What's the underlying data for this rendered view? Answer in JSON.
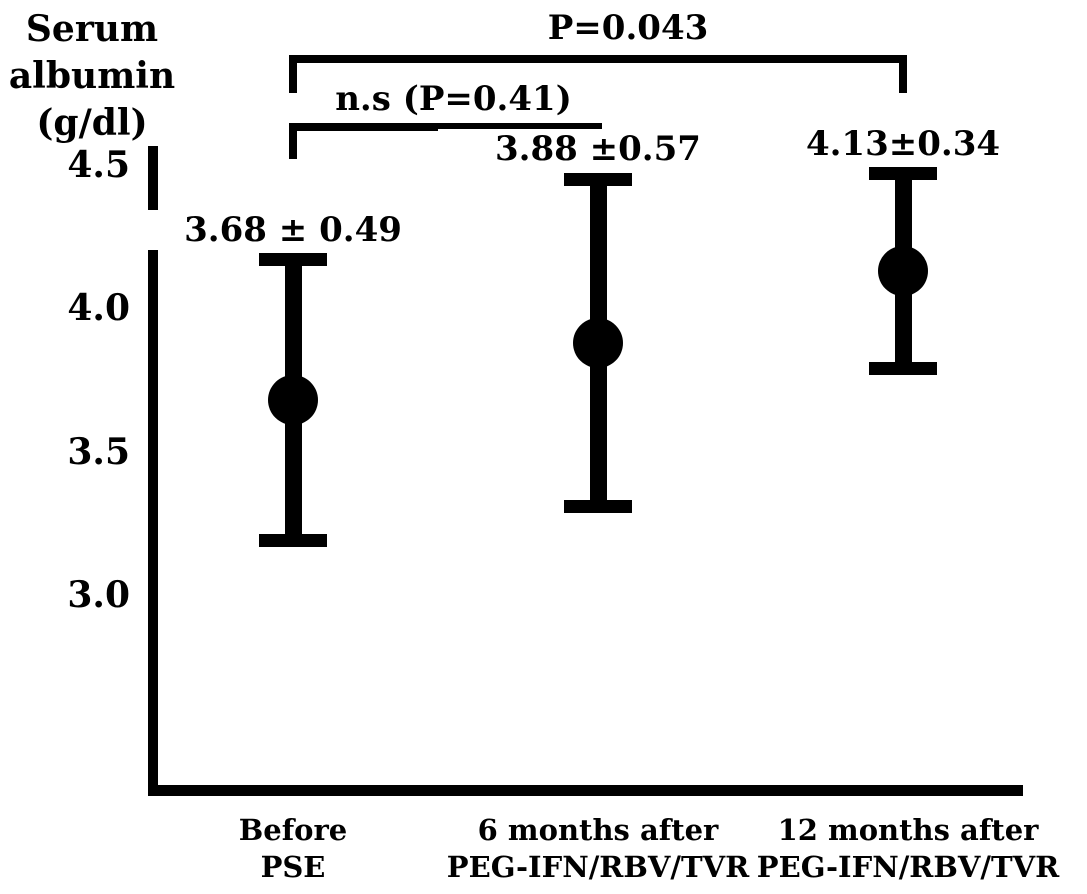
{
  "figure": {
    "background_color": "#ffffff",
    "ink_color": "#000000"
  },
  "chart_data": {
    "type": "scatter",
    "subtype": "mean-with-error-bars",
    "title": "",
    "ylabel": "Serum albumin (g/dl)",
    "ylabel_lines": [
      "Serum",
      "albumin",
      "(g/dl)"
    ],
    "yticks": [
      "4.5",
      "4.0",
      "3.5",
      "3.0"
    ],
    "ylim": [
      3.0,
      4.5
    ],
    "grid": false,
    "legend": null,
    "categories": [
      "Before PSE",
      "6 months after PEG-IFN/RBV/TVR",
      "12 months after PEG-IFN/RBV/TVR"
    ],
    "category_lines": [
      [
        "Before",
        "PSE"
      ],
      [
        "6 months after",
        "PEG-IFN/RBV/TVR"
      ],
      [
        "12 months after",
        "PEG-IFN/RBV/TVR"
      ]
    ],
    "points": [
      {
        "category": "Before PSE",
        "mean": 3.68,
        "sd": 0.49,
        "label": "3.68 ± 0.49"
      },
      {
        "category": "6 months after PEG-IFN/RBV/TVR",
        "mean": 3.88,
        "sd": 0.57,
        "label": "3.88 ±0.57"
      },
      {
        "category": "12 months after PEG-IFN/RBV/TVR",
        "mean": 4.13,
        "sd": 0.34,
        "label": "4.13±0.34"
      }
    ],
    "significance": [
      {
        "between": [
          0,
          2
        ],
        "label": "P=0.043"
      },
      {
        "between": [
          0,
          1
        ],
        "label": "n.s (P=0.41)"
      }
    ]
  }
}
